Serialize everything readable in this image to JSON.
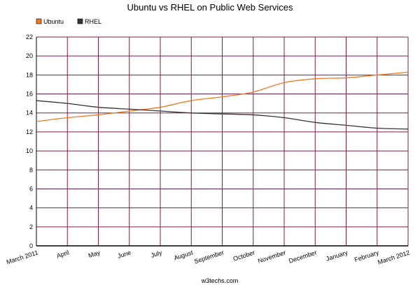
{
  "chart_data": {
    "type": "line",
    "title": "Ubuntu vs RHEL on Public Web Services",
    "xlabel": "",
    "ylabel": "",
    "x": [
      "March 2011",
      "April",
      "May",
      "June",
      "July",
      "August",
      "September",
      "October",
      "November",
      "December",
      "January",
      "February",
      "March 2012"
    ],
    "ylim": [
      0,
      22
    ],
    "yticks": [
      0,
      2,
      4,
      6,
      8,
      10,
      12,
      14,
      16,
      18,
      20,
      22
    ],
    "grid": true,
    "legend_position": "top-left",
    "series": [
      {
        "name": "Ubuntu",
        "color": "#f07820",
        "values": [
          13.1,
          13.5,
          13.8,
          14.2,
          14.6,
          15.3,
          15.7,
          16.2,
          17.2,
          17.6,
          17.7,
          18.0,
          18.3
        ]
      },
      {
        "name": "RHEL",
        "color": "#333333",
        "values": [
          15.3,
          15.0,
          14.6,
          14.4,
          14.2,
          14.0,
          13.9,
          13.8,
          13.5,
          13.0,
          12.7,
          12.4,
          12.3
        ]
      }
    ],
    "grid_color": "#7a1f4a",
    "footer": "w3techs.com"
  }
}
